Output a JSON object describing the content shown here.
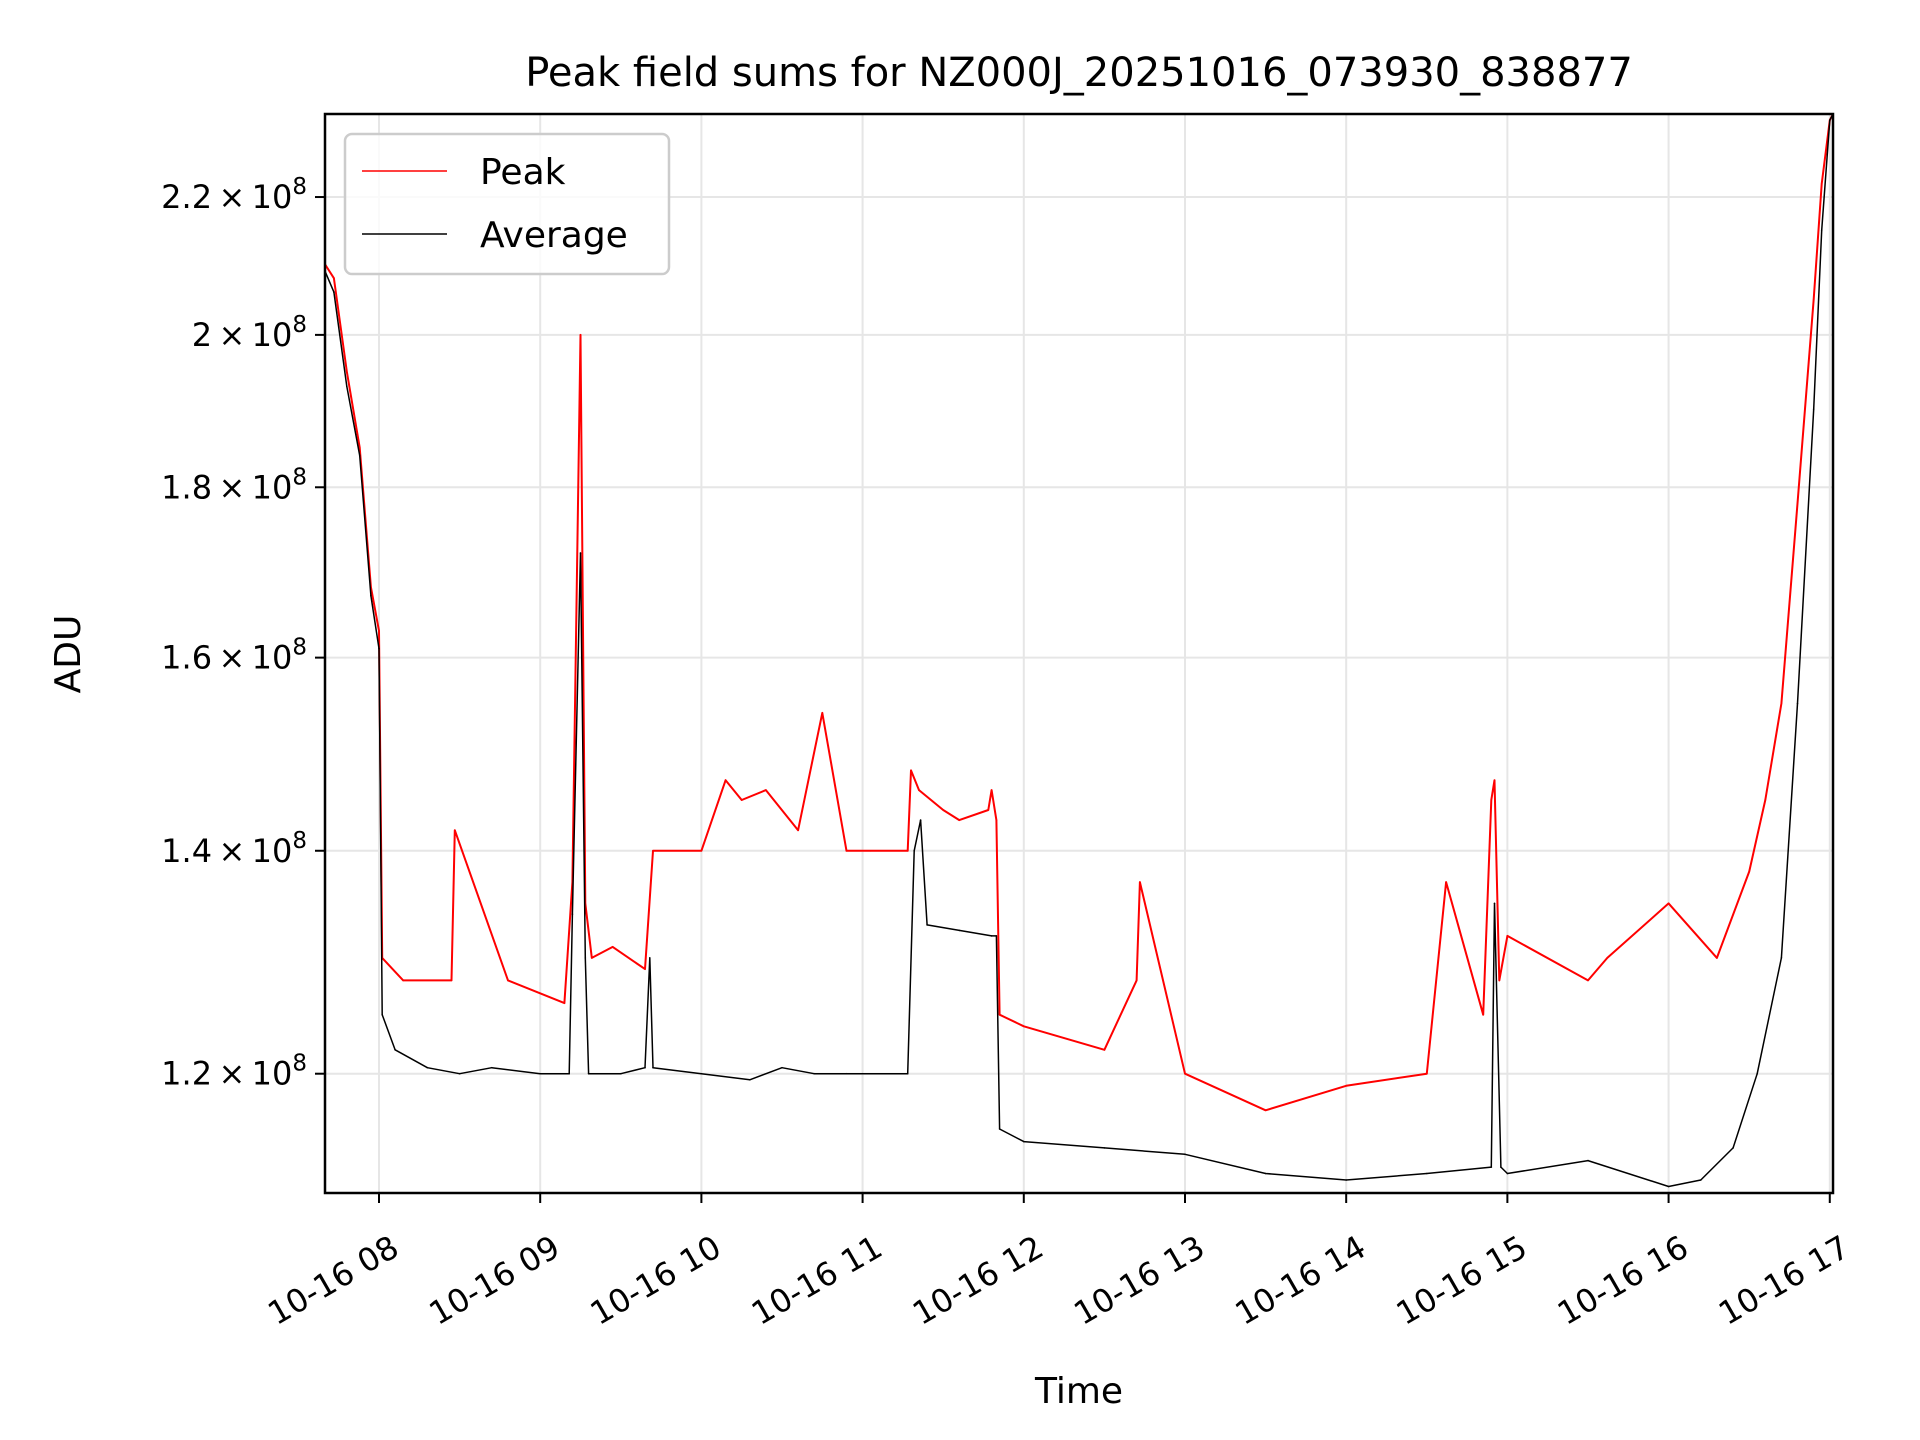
{
  "chart_data": {
    "type": "line",
    "title": "Peak field sums for NZ000J_20251016_073930_838877",
    "xlabel": "Time",
    "ylabel": "ADU",
    "yscale": "log",
    "x_unit": "hours since 10-16 00:00",
    "xlim": [
      7.665,
      17.02
    ],
    "ylim": [
      110500000.0,
      233000000.0
    ],
    "grid": true,
    "legend_position": "top-left",
    "x_ticks": [
      {
        "value": 8,
        "label": "10-16 08"
      },
      {
        "value": 9,
        "label": "10-16 09"
      },
      {
        "value": 10,
        "label": "10-16 10"
      },
      {
        "value": 11,
        "label": "10-16 11"
      },
      {
        "value": 12,
        "label": "10-16 12"
      },
      {
        "value": 13,
        "label": "10-16 13"
      },
      {
        "value": 14,
        "label": "10-16 14"
      },
      {
        "value": 15,
        "label": "10-16 15"
      },
      {
        "value": 16,
        "label": "10-16 16"
      },
      {
        "value": 17,
        "label": "10-16 17"
      }
    ],
    "y_ticks": [
      {
        "value": 120000000.0,
        "mant": "1.2",
        "exp": "8"
      },
      {
        "value": 140000000.0,
        "mant": "1.4",
        "exp": "8"
      },
      {
        "value": 160000000.0,
        "mant": "1.6",
        "exp": "8"
      },
      {
        "value": 180000000.0,
        "mant": "1.8",
        "exp": "8"
      },
      {
        "value": 200000000.0,
        "mant": "2",
        "exp": "8"
      },
      {
        "value": 220000000.0,
        "mant": "2.2",
        "exp": "8"
      }
    ],
    "series": [
      {
        "name": "Peak",
        "color": "#ff0000",
        "x": [
          7.665,
          7.72,
          7.8,
          7.88,
          7.95,
          8.0,
          8.02,
          8.15,
          8.45,
          8.47,
          8.8,
          9.15,
          9.2,
          9.25,
          9.28,
          9.32,
          9.45,
          9.65,
          9.7,
          10.0,
          10.15,
          10.25,
          10.4,
          10.6,
          10.75,
          10.9,
          11.05,
          11.28,
          11.3,
          11.35,
          11.5,
          11.6,
          11.78,
          11.8,
          11.83,
          11.85,
          12.0,
          12.5,
          12.7,
          12.72,
          13.0,
          13.5,
          14.0,
          14.5,
          14.62,
          14.85,
          14.9,
          14.92,
          14.95,
          15.0,
          15.5,
          15.62,
          16.0,
          16.3,
          16.5,
          16.6,
          16.7,
          16.8,
          16.9,
          16.95,
          17.0,
          17.02
        ],
        "y": [
          210000000.0,
          208000000.0,
          195000000.0,
          185000000.0,
          168000000.0,
          163000000.0,
          130000000.0,
          128000000.0,
          128000000.0,
          142000000.0,
          128000000.0,
          126000000.0,
          137000000.0,
          200000000.0,
          135000000.0,
          130000000.0,
          131000000.0,
          129000000.0,
          140000000.0,
          140000000.0,
          147000000.0,
          145000000.0,
          146000000.0,
          142000000.0,
          154000000.0,
          140000000.0,
          140000000.0,
          140000000.0,
          148000000.0,
          146000000.0,
          144000000.0,
          143000000.0,
          144000000.0,
          146000000.0,
          143000000.0,
          125000000.0,
          124000000.0,
          122000000.0,
          128000000.0,
          137000000.0,
          120000000.0,
          117000000.0,
          119000000.0,
          120000000.0,
          137000000.0,
          125000000.0,
          145000000.0,
          147000000.0,
          128000000.0,
          132000000.0,
          128000000.0,
          130000000.0,
          135000000.0,
          130000000.0,
          138000000.0,
          145000000.0,
          155000000.0,
          178000000.0,
          205000000.0,
          222000000.0,
          232000000.0,
          233000000.0
        ]
      },
      {
        "name": "Average",
        "color": "#000000",
        "x": [
          7.665,
          7.72,
          7.8,
          7.88,
          7.95,
          8.0,
          8.02,
          8.1,
          8.3,
          8.5,
          8.7,
          9.0,
          9.18,
          9.2,
          9.25,
          9.28,
          9.3,
          9.5,
          9.65,
          9.68,
          9.7,
          10.0,
          10.3,
          10.5,
          10.7,
          10.9,
          11.0,
          11.28,
          11.32,
          11.36,
          11.4,
          11.6,
          11.8,
          11.83,
          11.85,
          12.0,
          12.5,
          13.0,
          13.5,
          14.0,
          14.5,
          14.9,
          14.92,
          14.96,
          15.0,
          15.5,
          16.0,
          16.2,
          16.4,
          16.55,
          16.7,
          16.8,
          16.9,
          16.95,
          17.0,
          17.02
        ],
        "y": [
          209000000.0,
          206000000.0,
          193000000.0,
          184000000.0,
          167000000.0,
          161000000.0,
          125000000.0,
          122000000.0,
          120500000.0,
          120000000.0,
          120500000.0,
          120000000.0,
          120000000.0,
          134000000.0,
          172000000.0,
          130000000.0,
          120000000.0,
          120000000.0,
          120500000.0,
          130000000.0,
          120500000.0,
          120000000.0,
          119500000.0,
          120500000.0,
          120000000.0,
          120000000.0,
          120000000.0,
          120000000.0,
          140000000.0,
          143000000.0,
          133000000.0,
          132500000.0,
          132000000.0,
          132000000.0,
          115500000.0,
          114500000.0,
          114000000.0,
          113500000.0,
          112000000.0,
          111500000.0,
          112000000.0,
          112500000.0,
          135000000.0,
          112500000.0,
          112000000.0,
          113000000.0,
          111000000.0,
          111500000.0,
          114000000.0,
          120000000.0,
          130000000.0,
          155000000.0,
          190000000.0,
          215000000.0,
          232000000.0,
          233000000.0
        ]
      }
    ],
    "legend": [
      {
        "label": "Peak",
        "color": "#ff0000"
      },
      {
        "label": "Average",
        "color": "#000000"
      }
    ]
  }
}
